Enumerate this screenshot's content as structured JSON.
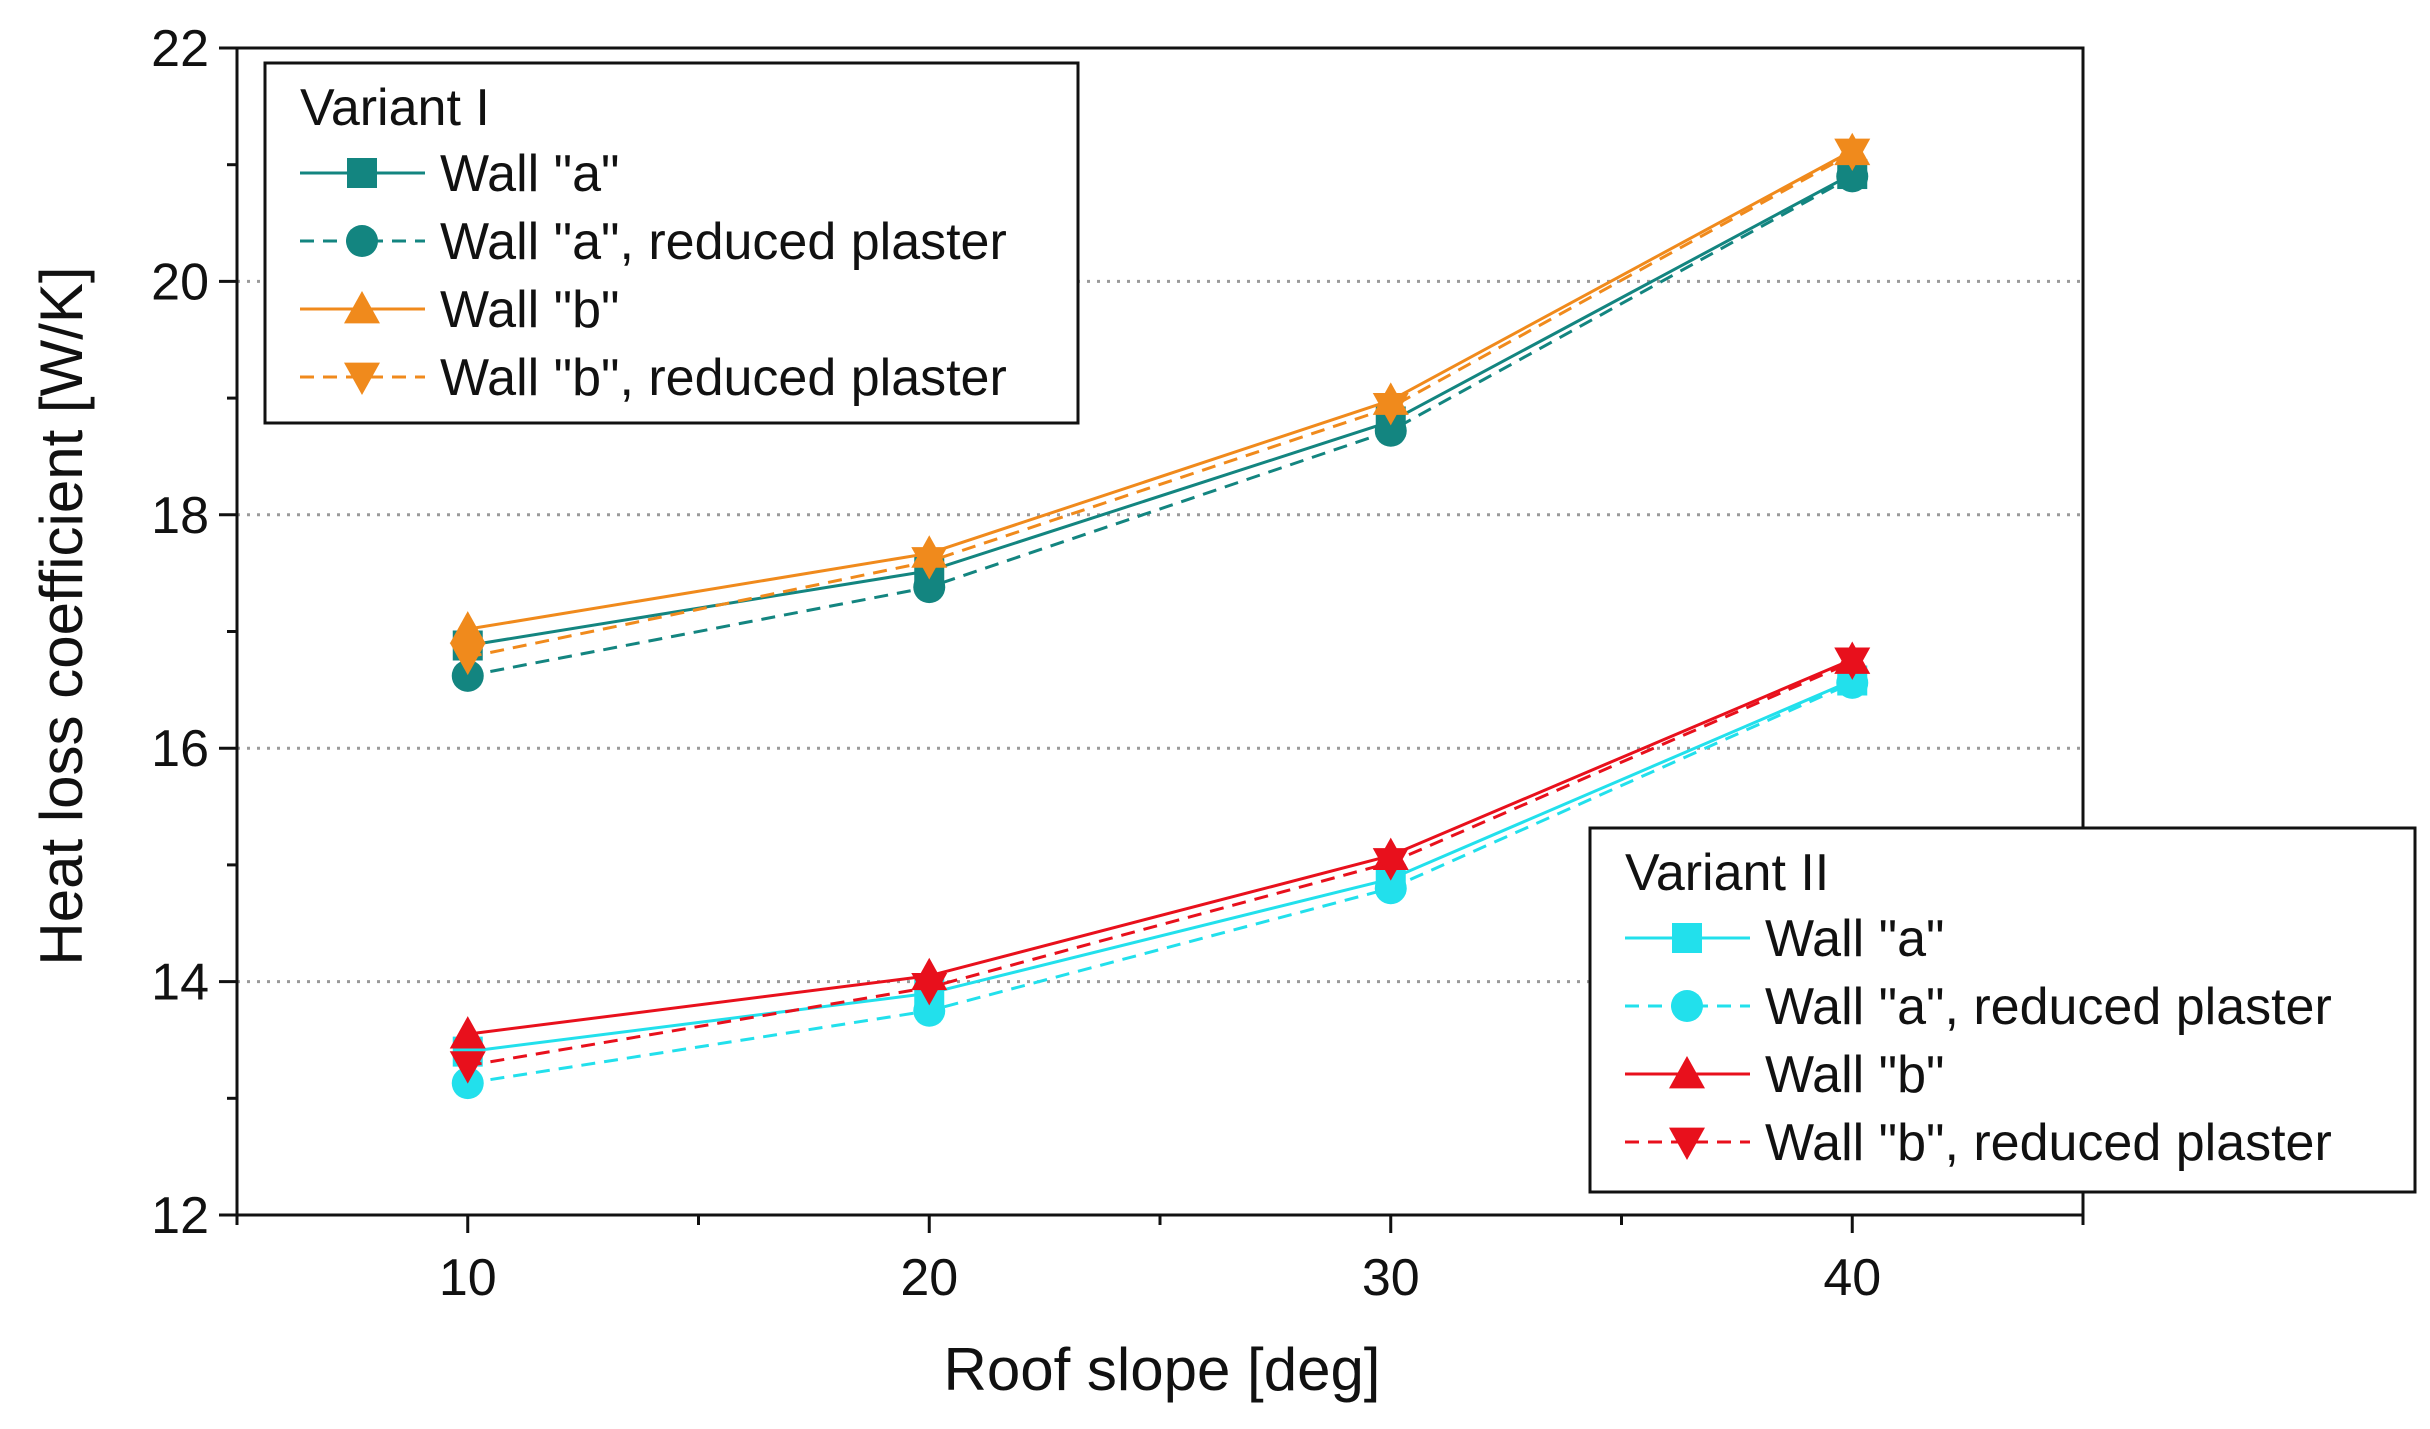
{
  "chart_data": {
    "type": "line",
    "title": "",
    "xlabel": "Roof slope [deg]",
    "ylabel": "Heat loss coefficient [W/K]",
    "x": [
      10,
      20,
      30,
      40
    ],
    "xlim": [
      5,
      45
    ],
    "ylim": [
      12,
      22
    ],
    "xticks": [
      10,
      20,
      30,
      40
    ],
    "yticks": [
      12,
      14,
      16,
      18,
      20,
      22
    ],
    "grid": "horizontal dotted",
    "series": [
      {
        "name": "Wall \"a\"",
        "group": "Variant I",
        "color": "#138580",
        "dash": "solid",
        "marker": "square",
        "values": [
          16.88,
          17.52,
          18.8,
          20.92
        ]
      },
      {
        "name": "Wall \"a\", reduced plaster",
        "group": "Variant I",
        "color": "#138580",
        "dash": "dashed",
        "marker": "circle",
        "values": [
          16.62,
          17.38,
          18.72,
          20.9
        ]
      },
      {
        "name": "Wall \"b\"",
        "group": "Variant I",
        "color": "#f08a1c",
        "dash": "solid",
        "marker": "triangle-up",
        "values": [
          17.02,
          17.67,
          18.98,
          21.12
        ]
      },
      {
        "name": "Wall \"b\", reduced plaster",
        "group": "Variant I",
        "color": "#f08a1c",
        "dash": "dashed",
        "marker": "triangle-down",
        "values": [
          16.78,
          17.6,
          18.92,
          21.1
        ]
      },
      {
        "name": "Wall \"a\"",
        "group": "Variant II",
        "color": "#22e0ec",
        "dash": "solid",
        "marker": "square",
        "values": [
          13.4,
          13.9,
          14.88,
          16.58
        ]
      },
      {
        "name": "Wall \"a\", reduced plaster",
        "group": "Variant II",
        "color": "#22e0ec",
        "dash": "dashed",
        "marker": "circle",
        "values": [
          13.13,
          13.75,
          14.8,
          16.56
        ]
      },
      {
        "name": "Wall \"b\"",
        "group": "Variant II",
        "color": "#e8101c",
        "dash": "solid",
        "marker": "triangle-up",
        "values": [
          13.55,
          14.05,
          15.08,
          16.76
        ]
      },
      {
        "name": "Wall \"b\", reduced plaster",
        "group": "Variant II",
        "color": "#e8101c",
        "dash": "dashed",
        "marker": "triangle-down",
        "values": [
          13.28,
          13.95,
          15.02,
          16.74
        ]
      }
    ],
    "legends": [
      {
        "title": "Variant I",
        "placement": "top-left",
        "series_index": [
          0,
          1,
          2,
          3
        ]
      },
      {
        "title": "Variant II",
        "placement": "bottom-right",
        "series_index": [
          4,
          5,
          6,
          7
        ]
      }
    ]
  }
}
